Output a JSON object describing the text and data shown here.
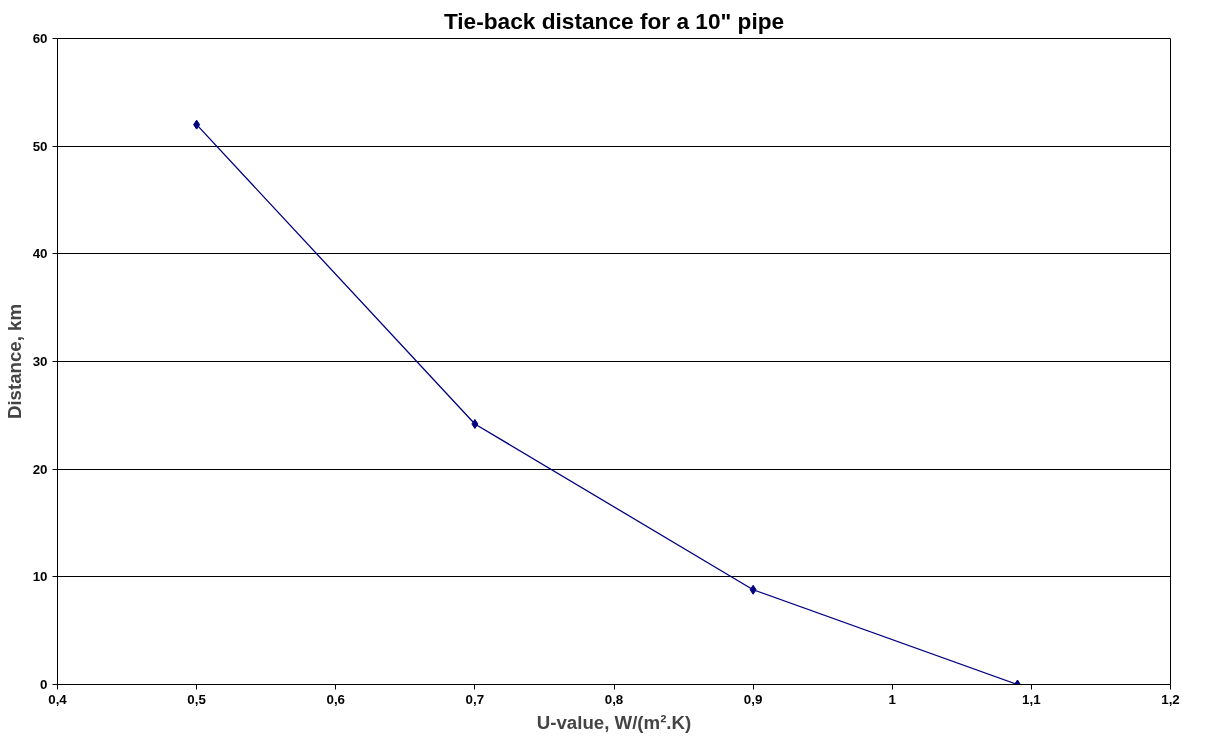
{
  "chart_data": {
    "type": "line",
    "title": "Tie-back distance for a 10\" pipe",
    "xlabel": "U-value, W/(m².K)",
    "ylabel": "Distance, km",
    "x": [
      0.5,
      0.7,
      0.9,
      1.09
    ],
    "series": [
      {
        "color": "#000080",
        "values": [
          52.0,
          24.2,
          8.8,
          0
        ]
      }
    ],
    "xlim": [
      0.4,
      1.2
    ],
    "xticks": [
      {
        "value": 0.4,
        "label": "0,4"
      },
      {
        "value": 0.5,
        "label": "0,5"
      },
      {
        "value": 0.6,
        "label": "0,6"
      },
      {
        "value": 0.7,
        "label": "0,7"
      },
      {
        "value": 0.8,
        "label": "0,8"
      },
      {
        "value": 0.9,
        "label": "0,9"
      },
      1,
      {
        "value": 1.1,
        "label": "1,1"
      },
      {
        "value": 1.2,
        "label": "1,2"
      }
    ],
    "ylim": [
      0,
      60
    ],
    "yticks": [
      0,
      10,
      20,
      30,
      40,
      50,
      60
    ],
    "grid": "y",
    "marker": "diamond",
    "line_style": "solid"
  }
}
